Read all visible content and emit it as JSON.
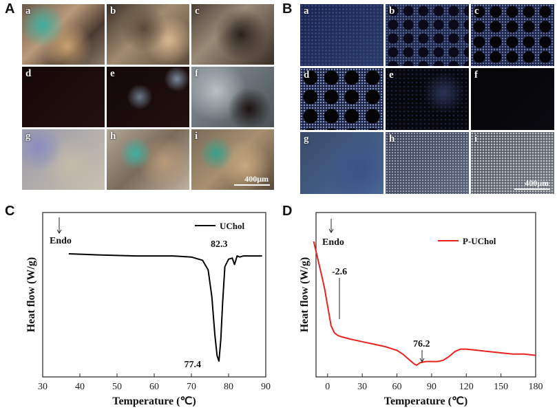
{
  "panels": {
    "A": {
      "letter": "A",
      "cells": [
        "a",
        "b",
        "c",
        "d",
        "e",
        "f",
        "g",
        "h",
        "i"
      ],
      "scale_bar": "400μm"
    },
    "B": {
      "letter": "B",
      "cells": [
        "a",
        "b",
        "c",
        "d",
        "e",
        "f",
        "g",
        "h",
        "i"
      ],
      "scale_bar": "400μm"
    },
    "C": {
      "letter": "C"
    },
    "D": {
      "letter": "D"
    }
  },
  "chart_data": [
    {
      "panel": "C",
      "type": "line",
      "xlabel": "Temperature (℃)",
      "ylabel": "Heat flow (W/g)",
      "xlim": [
        30,
        90
      ],
      "x_ticks": [
        30,
        40,
        50,
        60,
        70,
        80,
        90
      ],
      "legend": "top-right",
      "series": [
        {
          "name": "UChol",
          "color": "#000000",
          "x": [
            37,
            45,
            55,
            65,
            70,
            73,
            74.5,
            75.5,
            76.3,
            76.9,
            77.4,
            77.9,
            78.4,
            79,
            80,
            81,
            81.6,
            82.3,
            83,
            84,
            86,
            89
          ],
          "y": [
            0.0,
            -0.01,
            -0.02,
            -0.02,
            -0.03,
            -0.06,
            -0.15,
            -0.4,
            -0.75,
            -0.95,
            -1.0,
            -0.8,
            -0.45,
            -0.12,
            -0.05,
            -0.04,
            -0.1,
            -0.02,
            -0.03,
            -0.02,
            -0.02,
            -0.02
          ]
        }
      ],
      "annotations": [
        {
          "text": "Endo",
          "x": 37.5,
          "kind": "arrow-down"
        },
        {
          "text": "77.4",
          "x": 77.4
        },
        {
          "text": "82.3",
          "x": 82.3
        }
      ]
    },
    {
      "panel": "D",
      "type": "line",
      "xlabel": "Temperature (℃)",
      "ylabel": "Heat flow (W/g)",
      "xlim": [
        -10,
        180
      ],
      "x_ticks": [
        0,
        30,
        60,
        90,
        120,
        150,
        180
      ],
      "legend": "top-right",
      "series": [
        {
          "name": "P-UChol",
          "color": "#e8211e",
          "x": [
            -12,
            -10,
            -8,
            -5,
            -2.6,
            0,
            3,
            6,
            9,
            12,
            20,
            30,
            40,
            50,
            60,
            65,
            70,
            75,
            77,
            80,
            85,
            90,
            95,
            100,
            105,
            110,
            115,
            120,
            130,
            140,
            150,
            160,
            170,
            180
          ],
          "y": [
            1.0,
            0.92,
            0.84,
            0.72,
            0.62,
            0.48,
            0.32,
            0.26,
            0.24,
            0.23,
            0.21,
            0.19,
            0.17,
            0.15,
            0.12,
            0.09,
            0.05,
            0.01,
            0.0,
            0.02,
            0.03,
            0.03,
            0.03,
            0.04,
            0.07,
            0.11,
            0.13,
            0.13,
            0.12,
            0.11,
            0.1,
            0.09,
            0.09,
            0.08
          ]
        }
      ],
      "annotations": [
        {
          "text": "Endo",
          "x": -5,
          "kind": "arrow-down"
        },
        {
          "text": "-2.6",
          "x": -2.6,
          "kind": "line-marker"
        },
        {
          "text": "76.2",
          "x": 76.2,
          "kind": "arrow-down"
        }
      ]
    }
  ]
}
